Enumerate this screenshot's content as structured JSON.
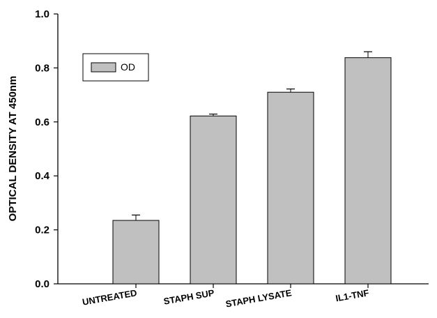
{
  "chart_data": {
    "type": "bar",
    "title": "",
    "xlabel": "",
    "ylabel": "OPTICAL DENSITY AT 450nm",
    "ylim": [
      0,
      1.0
    ],
    "yticks": [
      "0.0",
      "0.2",
      "0.4",
      "0.6",
      "0.8",
      "1.0"
    ],
    "categories": [
      "UNTREATED",
      "STAPH SUP",
      "STAPH LYSATE",
      "IL1-TNF"
    ],
    "series": [
      {
        "name": "OD",
        "values": [
          0.235,
          0.622,
          0.71,
          0.838
        ],
        "errors": [
          0.02,
          0.007,
          0.012,
          0.022
        ]
      }
    ],
    "grid": false,
    "legend_position": "top-left",
    "colors": {
      "bar_fill": "#c0c0c0",
      "bar_stroke": "#000000"
    }
  }
}
